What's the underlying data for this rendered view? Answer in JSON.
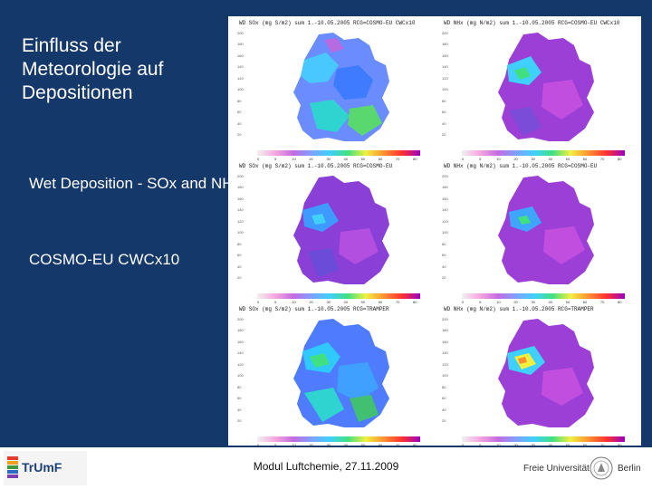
{
  "slide": {
    "title": "Einfluss der Meteorologie auf Depositionen",
    "subtitle_1": "Wet Deposition - SOx and NHx",
    "subtitle_2": "COSMO-EU CWCx10",
    "background_color": "#15386b"
  },
  "panels": [
    {
      "title": "WD SOx (mg S/m2) sum 1.-10.05.2005 RCG=COSMO-EU CWCx10"
    },
    {
      "title": "WD NHx (mg N/m2) sum 1.-10.05.2005 RCG=COSMO-EU CWCx10"
    },
    {
      "title": "WD SOx (mg S/m2) sum 1.-10.05.2005 RCG=COSMO-EU"
    },
    {
      "title": "WD NHx (mg N/m2) sum 1.-10.05.2005 RCG=COSMO-EU"
    },
    {
      "title": "WD SOx (mg S/m2) sum 1.-10.05.2005 RCG=TRAMPER"
    },
    {
      "title": "WD NHx (mg N/m2) sum 1.-10.05.2005 RCG=TRAMPER"
    }
  ],
  "y_ticks": [
    "200",
    "180",
    "160",
    "140",
    "120",
    "100",
    "80",
    "60",
    "40",
    "20"
  ],
  "colorbar_labels": [
    "0",
    "5",
    "10",
    "20",
    "30",
    "40",
    "50",
    "60",
    "70",
    "80"
  ],
  "footer": {
    "text": "Modul Luftchemie, 27.11.2009",
    "logo_left": "TrUmF",
    "logo_right_left": "Freie Universität",
    "logo_right_right": "Berlin"
  }
}
